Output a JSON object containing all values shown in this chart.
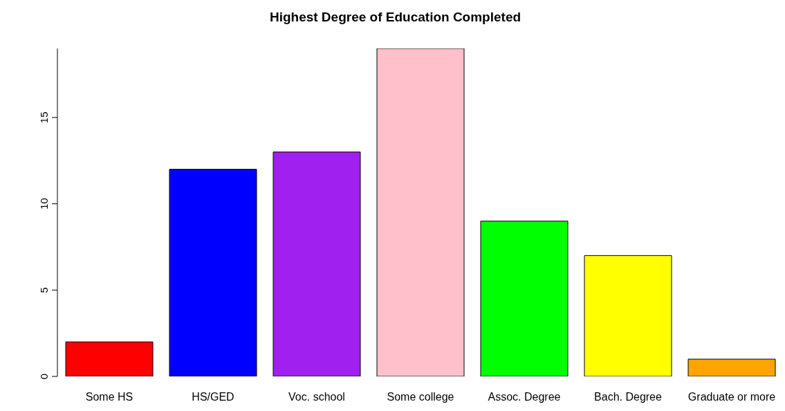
{
  "chart_data": {
    "type": "bar",
    "title": "Highest Degree of Education Completed",
    "categories": [
      "Some HS",
      "HS/GED",
      "Voc. school",
      "Some college",
      "Assoc. Degree",
      "Bach. Degree",
      "Graduate or more"
    ],
    "values": [
      2,
      12,
      13,
      19,
      9,
      7,
      1
    ],
    "colors": [
      "#ff0000",
      "#0000ff",
      "#a020f0",
      "#ffc0cb",
      "#00ff00",
      "#ffff00",
      "#ffa500"
    ],
    "ylim": [
      0,
      19
    ],
    "yticks": [
      0,
      5,
      10,
      15
    ],
    "grid": false
  }
}
